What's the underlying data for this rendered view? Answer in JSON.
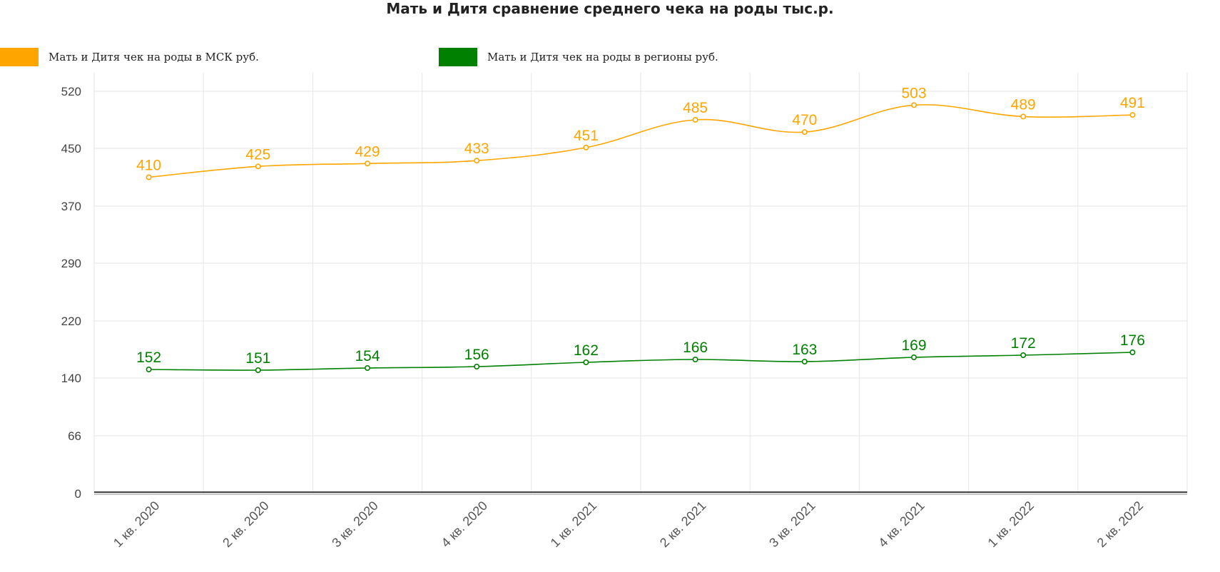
{
  "title": "Мать и Дитя сравнение среднего чека на роды тыс.р.",
  "colors": {
    "msk": "#FFA500",
    "regions": "#008000"
  },
  "chart_data": {
    "type": "line",
    "title": "Мать и Дитя сравнение среднего чека на роды тыс.р.",
    "categories": [
      "1 кв. 2020",
      "2 кв. 2020",
      "3 кв. 2020",
      "4 кв. 2020",
      "1 кв. 2021",
      "2 кв. 2021",
      "3 кв. 2021",
      "4 кв. 2021",
      "1 кв. 2022",
      "2 кв. 2022"
    ],
    "y_ticks": [
      "520",
      "450",
      "370",
      "290",
      "220",
      "140",
      "66",
      "0"
    ],
    "ylim": [
      0,
      560
    ],
    "grid": true,
    "legend_position": "top",
    "series": [
      {
        "name": "Мать и Дитя чек на роды в МСК руб.",
        "color": "#FFA500",
        "values": [
          410,
          425,
          429,
          433,
          451,
          485,
          470,
          503,
          489,
          491
        ]
      },
      {
        "name": "Мать и Дитя чек на роды в регионы руб.",
        "color": "#008000",
        "values": [
          152,
          151,
          154,
          156,
          162,
          166,
          163,
          169,
          172,
          176
        ]
      }
    ]
  }
}
